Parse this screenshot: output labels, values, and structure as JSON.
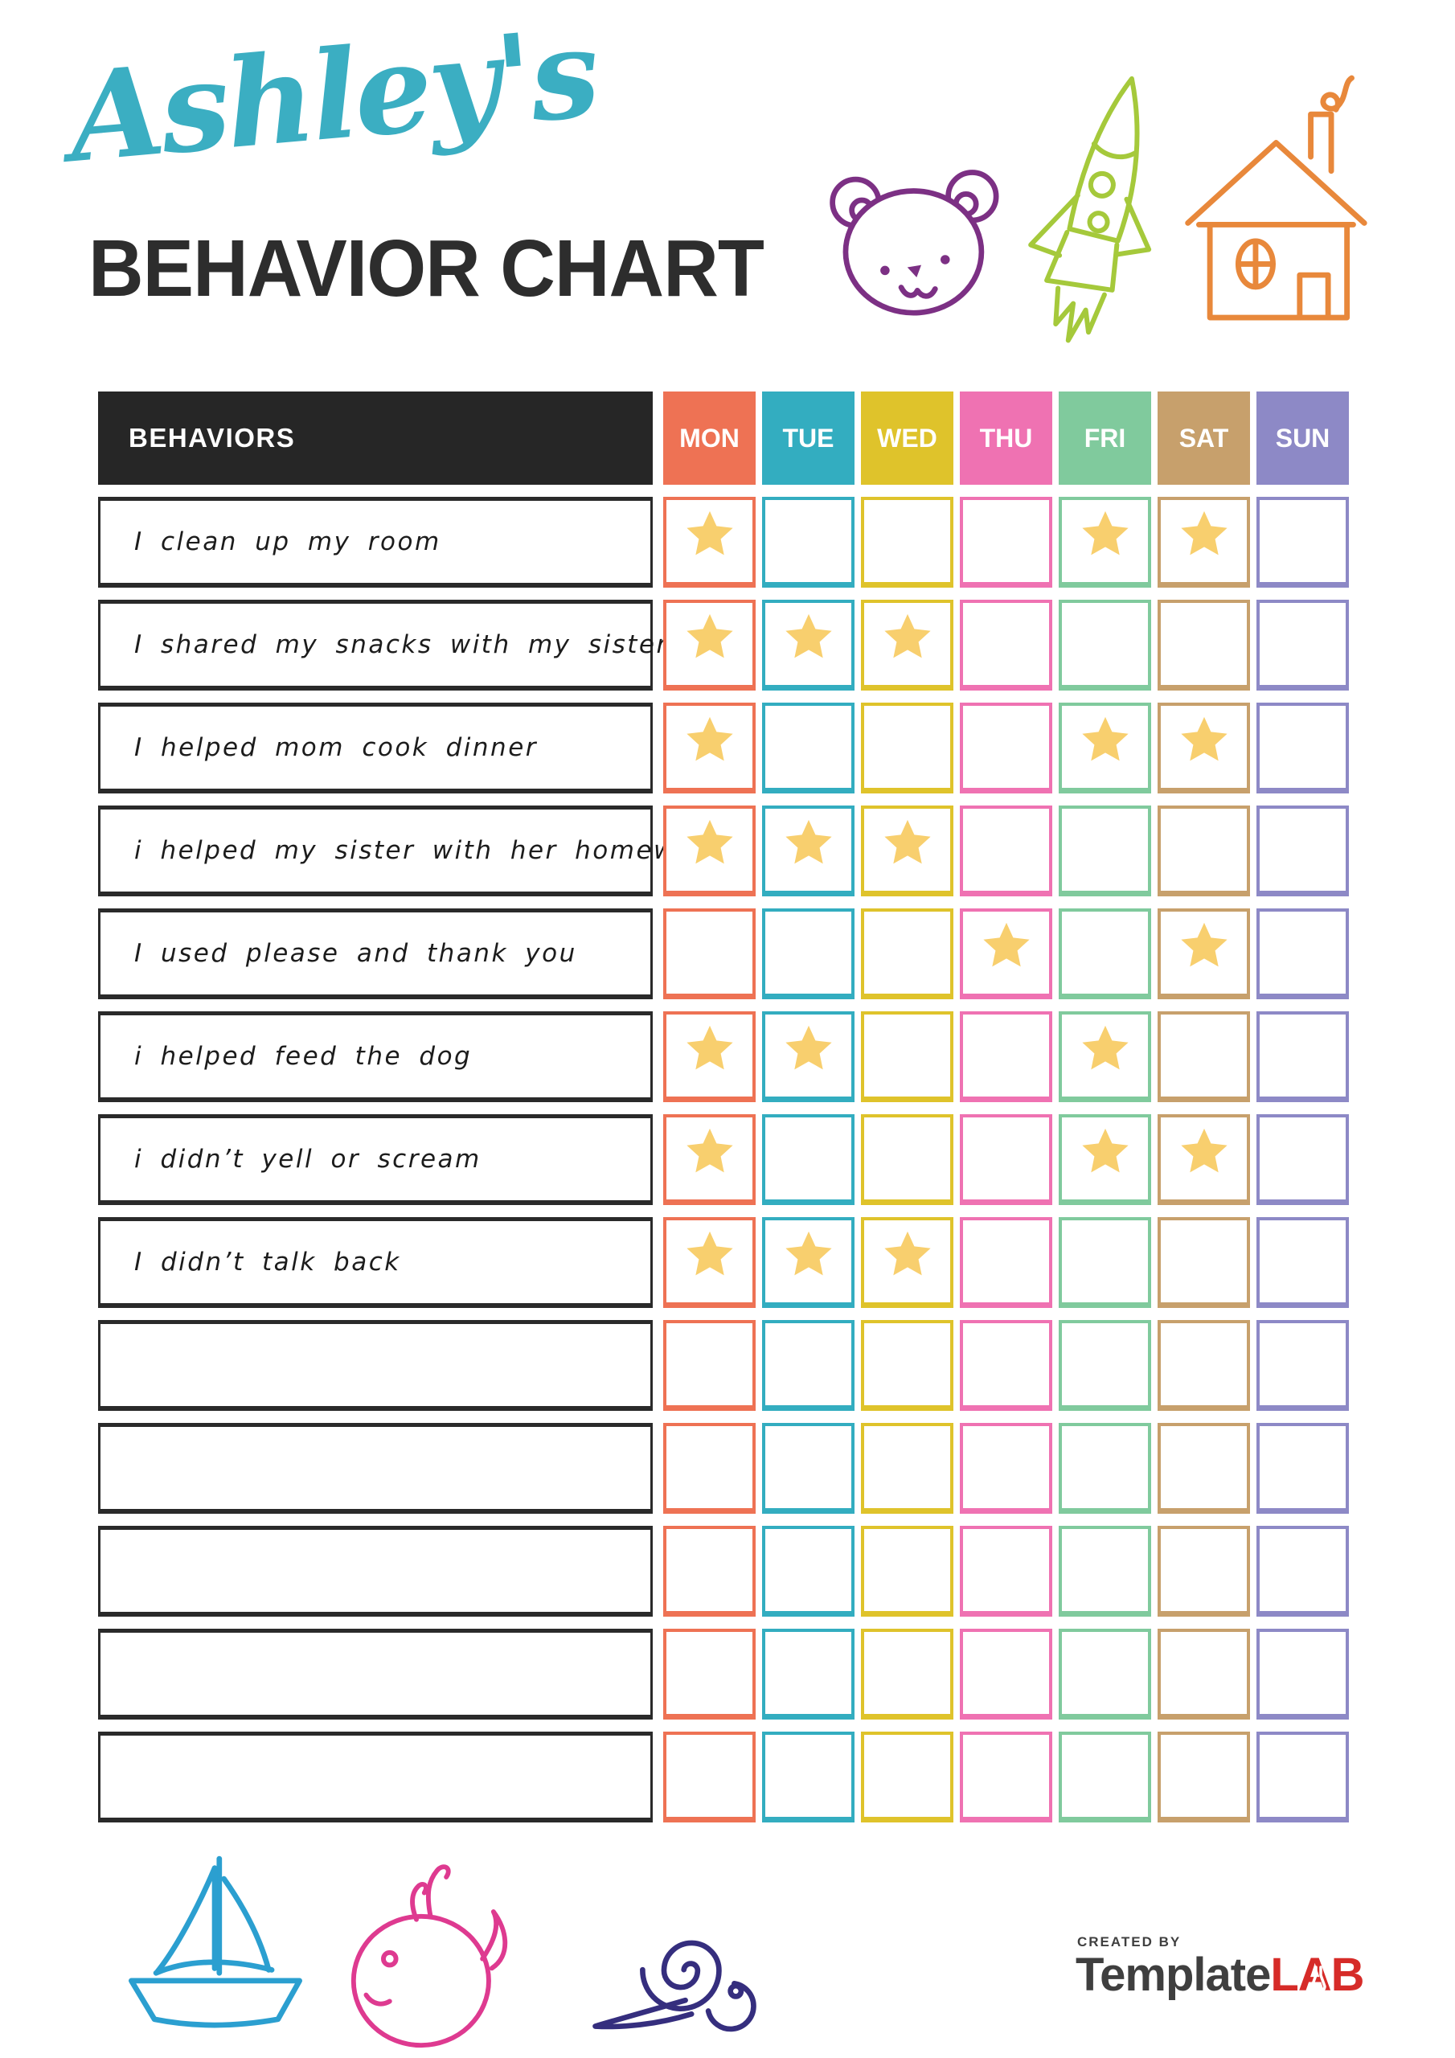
{
  "page": {
    "title_script": "Ashley's",
    "title_main": "BEHAVIOR CHART"
  },
  "colors": {
    "title_teal": "#3BAEC2",
    "title_dark": "#2D2D2D",
    "header_black": "#262626",
    "row_border": "#2A2A2A",
    "star": "#F8CF6E",
    "brand_red": "#D62B28",
    "brand_gray": "#3F3F3F"
  },
  "doodles": {
    "bear": {
      "name": "bear-icon",
      "color": "#7C3084"
    },
    "rocket": {
      "name": "rocket-icon",
      "color": "#A5C93B"
    },
    "house": {
      "name": "house-icon",
      "color": "#E8883B"
    },
    "sailboat": {
      "name": "sailboat-icon",
      "color": "#2B9FD0"
    },
    "whale": {
      "name": "whale-icon",
      "color": "#DE3A90"
    },
    "snail": {
      "name": "snail-icon",
      "color": "#352E7E"
    }
  },
  "table": {
    "behaviors_header": "BEHAVIORS",
    "days": [
      {
        "label": "MON",
        "color": "#EE7254"
      },
      {
        "label": "TUE",
        "color": "#33ADC0"
      },
      {
        "label": "WED",
        "color": "#DFC32B"
      },
      {
        "label": "THU",
        "color": "#EF72B2"
      },
      {
        "label": "FRI",
        "color": "#80CA9D"
      },
      {
        "label": "SAT",
        "color": "#C7A06C"
      },
      {
        "label": "SUN",
        "color": "#8D89C6"
      }
    ],
    "rows": [
      {
        "label": "I clean up my room",
        "stars": [
          "MON",
          "FRI",
          "SAT"
        ]
      },
      {
        "label": "I shared my snacks with my sister",
        "stars": [
          "MON",
          "TUE",
          "WED"
        ]
      },
      {
        "label": "I helped mom cook dinner",
        "stars": [
          "MON",
          "FRI",
          "SAT"
        ]
      },
      {
        "label": "i helped my sister with her homework",
        "stars": [
          "MON",
          "TUE",
          "WED"
        ]
      },
      {
        "label": "I used please and thank you",
        "stars": [
          "THU",
          "SAT"
        ]
      },
      {
        "label": "i helped feed the dog",
        "stars": [
          "MON",
          "TUE",
          "FRI"
        ]
      },
      {
        "label": "i didn’t yell or scream",
        "stars": [
          "MON",
          "FRI",
          "SAT"
        ]
      },
      {
        "label": "I didn’t talk back",
        "stars": [
          "MON",
          "TUE",
          "WED"
        ]
      },
      {
        "label": "",
        "stars": []
      },
      {
        "label": "",
        "stars": []
      },
      {
        "label": "",
        "stars": []
      },
      {
        "label": "",
        "stars": []
      },
      {
        "label": "",
        "stars": []
      }
    ]
  },
  "footer": {
    "created_by": "CREATED BY",
    "brand_primary": "Template",
    "brand_secondary": "LAB"
  }
}
